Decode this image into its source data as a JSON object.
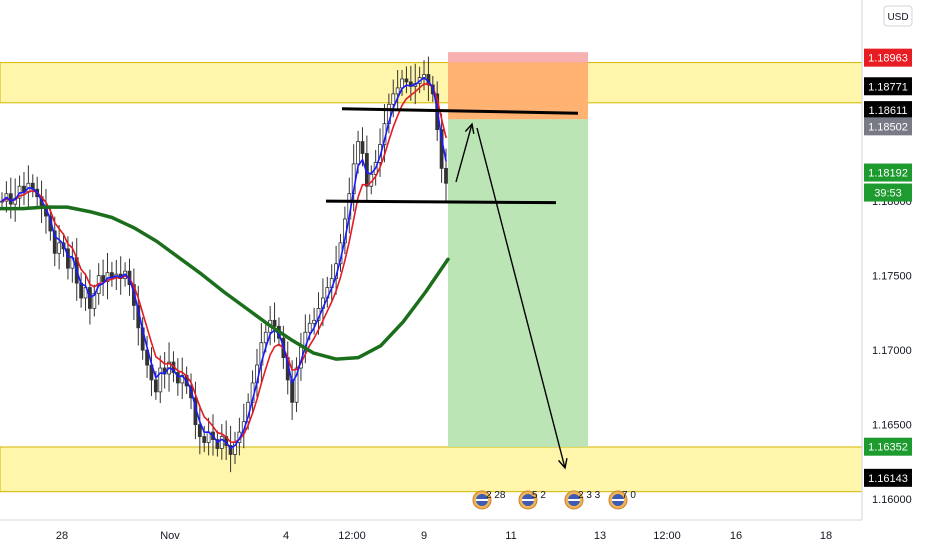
{
  "currency_label": "USD",
  "countdown_label": "39:53",
  "colors": {
    "candle_up": "#333333",
    "ema_fast": "#1a1aff",
    "ema_slow": "#e31b23",
    "ma_long": "#1b6e1b",
    "zone_fill": "#fff59d",
    "zone_border": "#d4b400",
    "stop_fill": "#f7a9a8",
    "target_fill": "#b7e4b1",
    "entry_fill": "#ffb26b",
    "tag_red": "#e81c23",
    "tag_green": "#1e9b2f",
    "tag_black": "#000000",
    "tag_gray": "#787b86"
  },
  "price_tags": [
    {
      "label": "1.18963",
      "price": 1.18963,
      "style": "red"
    },
    {
      "label": "1.18771",
      "price": 1.18771,
      "style": "black"
    },
    {
      "label": "1.18611",
      "price": 1.18611,
      "style": "black"
    },
    {
      "label": "1.18502",
      "price": 1.18502,
      "style": "gray"
    },
    {
      "label": "1.18192",
      "price": 1.18192,
      "style": "green"
    },
    {
      "label": "1.16352",
      "price": 1.16352,
      "style": "green"
    },
    {
      "label": "1.16143",
      "price": 1.16143,
      "style": "black"
    }
  ],
  "event_icons": [
    {
      "label": "2 28",
      "icon": "eu-us-flags-icon"
    },
    {
      "label": "5 2",
      "icon": "us-flag-icon"
    },
    {
      "label": "2 3 3",
      "icon": "us-flag-icon"
    },
    {
      "label": "7 0",
      "icon": "us-flag-icon"
    }
  ],
  "chart_data": {
    "type": "candlestick",
    "symbol_currency": "USD",
    "x_tick_labels": [
      "28",
      "Nov",
      "4",
      "12:00",
      "9",
      "11",
      "13",
      "12:00",
      "16",
      "18"
    ],
    "y_tick_labels": [
      "1.18500",
      "1.18000",
      "1.17500",
      "1.17000",
      "1.16500",
      "1.16000"
    ],
    "y_ticks": [
      1.185,
      1.18,
      1.175,
      1.17,
      1.165,
      1.16
    ],
    "ylim": [
      1.1586,
      1.1935
    ],
    "grid": false,
    "close_series": [
      1.18,
      1.1805,
      1.1798,
      1.1802,
      1.181,
      1.1806,
      1.1812,
      1.1808,
      1.1803,
      1.1795,
      1.179,
      1.178,
      1.1765,
      1.1772,
      1.1768,
      1.1755,
      1.1762,
      1.1745,
      1.1735,
      1.1742,
      1.1728,
      1.1738,
      1.175,
      1.1746,
      1.1752,
      1.1749,
      1.1751,
      1.1748,
      1.1753,
      1.1744,
      1.173,
      1.1715,
      1.17,
      1.169,
      1.168,
      1.1672,
      1.1688,
      1.1684,
      1.1692,
      1.1685,
      1.1678,
      1.1683,
      1.1676,
      1.1668,
      1.165,
      1.1642,
      1.1638,
      1.1645,
      1.164,
      1.1634,
      1.1642,
      1.1636,
      1.163,
      1.1638,
      1.1645,
      1.1652,
      1.1665,
      1.1678,
      1.169,
      1.1705,
      1.1712,
      1.172,
      1.1716,
      1.1708,
      1.1695,
      1.168,
      1.1665,
      1.1688,
      1.1702,
      1.1712,
      1.1718,
      1.172,
      1.1728,
      1.1735,
      1.1742,
      1.1748,
      1.1758,
      1.1772,
      1.1788,
      1.1805,
      1.1825,
      1.184,
      1.1832,
      1.181,
      1.1818,
      1.1826,
      1.1838,
      1.1852,
      1.1865,
      1.1872,
      1.1876,
      1.1882,
      1.188,
      1.1877,
      1.1879,
      1.1883,
      1.1885,
      1.1878,
      1.1872,
      1.1848,
      1.1822,
      1.1812
    ],
    "ma_long_series": [
      1.1795,
      1.1795,
      1.1796,
      1.1796,
      1.1793,
      1.1789,
      1.1782,
      1.1773,
      1.1762,
      1.1751,
      1.1739,
      1.1728,
      1.1717,
      1.1707,
      1.1698,
      1.1694,
      1.1695,
      1.1703,
      1.1719,
      1.1739,
      1.1761
    ],
    "zones": [
      {
        "label": "resistance-zone",
        "top": 1.1893,
        "bottom": 1.1866
      },
      {
        "label": "support-zone",
        "top": 1.1635,
        "bottom": 1.1605
      }
    ],
    "trade_box": {
      "stop": 1.19,
      "entry": 1.1855,
      "target": 1.1635
    },
    "annotations": [
      "resistance trendline",
      "support line",
      "pullback arrow",
      "downside target arrow"
    ]
  }
}
